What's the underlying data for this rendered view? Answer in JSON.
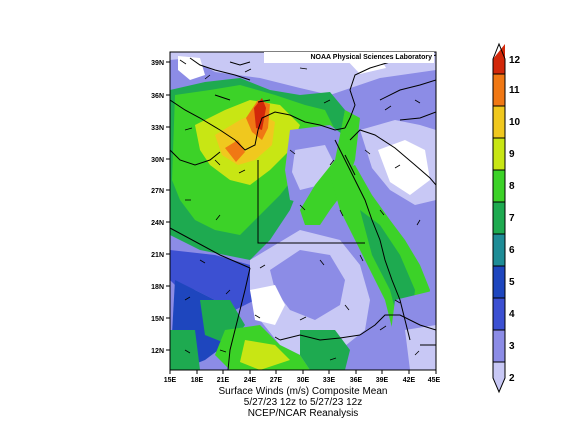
{
  "map": {
    "credit": "NOAA Physical Sciences Laboratory",
    "lat_labels": [
      "39N",
      "36N",
      "33N",
      "30N",
      "27N",
      "24N",
      "21N",
      "18N",
      "15N",
      "12N"
    ],
    "lon_labels": [
      "15E",
      "18E",
      "21E",
      "24E",
      "27E",
      "30E",
      "33E",
      "36E",
      "39E",
      "42E",
      "45E"
    ],
    "lon_range": [
      15,
      45
    ],
    "lat_range": [
      10,
      40
    ],
    "colorbar": {
      "labels": [
        "2",
        "3",
        "4",
        "5",
        "6",
        "7",
        "8",
        "9",
        "10",
        "11",
        "12"
      ],
      "colors": [
        "#c8c8f5",
        "#8c8ce6",
        "#3c50d2",
        "#1e46be",
        "#1e8c96",
        "#1eaa50",
        "#3cd228",
        "#c8e614",
        "#f0c81e",
        "#f07814",
        "#d2280a"
      ]
    },
    "colors": {
      "c2": "#ffffff",
      "c3": "#c8c8f5",
      "c4": "#8c8ce6",
      "c5": "#3c50d2",
      "c6": "#1e46be",
      "c7": "#1eaa50",
      "c8": "#3cd228",
      "c9": "#c8e614",
      "c10": "#f0c81e",
      "c11": "#f07814",
      "c12": "#d2280a"
    }
  },
  "captions": {
    "line1": "Surface Winds (m/s)    Composite Mean",
    "line2": "5/27/23 12z  to 5/27/23 12z",
    "line3": "NCEP/NCAR Reanalysis"
  }
}
